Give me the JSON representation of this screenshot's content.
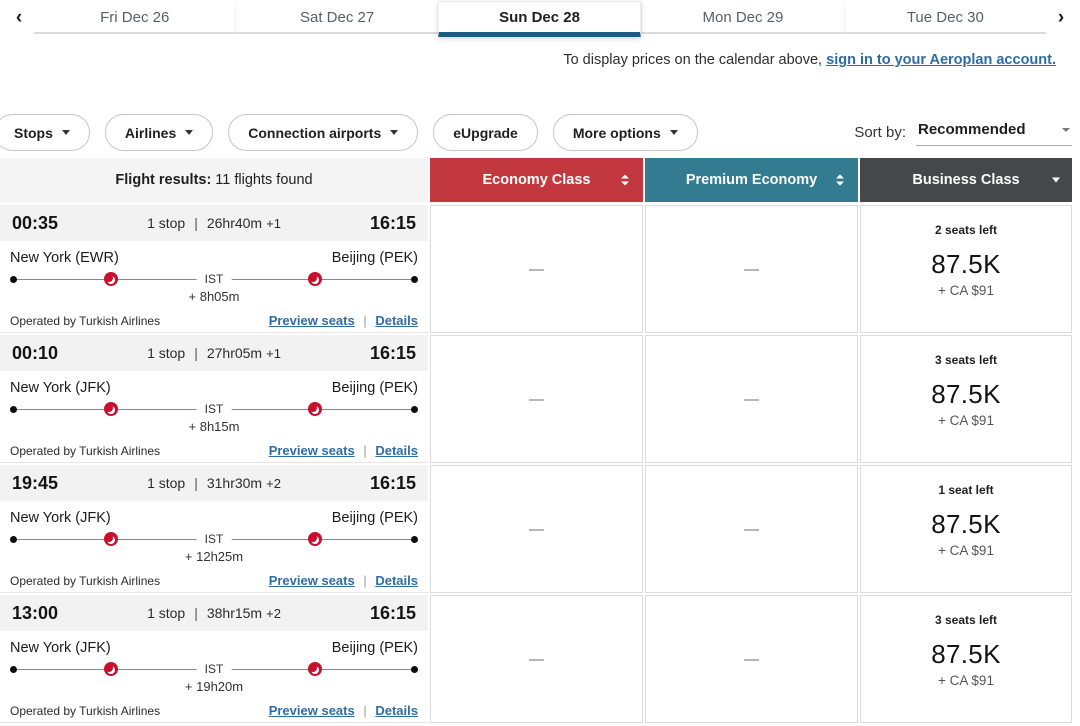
{
  "colors": {
    "economy_header": "#c2383e",
    "premium_header": "#337b91",
    "business_header": "#46474b",
    "selected_tab_underline": "#1d5c80",
    "link_blue": "#2e6da4",
    "airline_logo_red": "#c8102e"
  },
  "calendar": {
    "prev_icon": "‹",
    "next_icon": "›",
    "tabs": [
      {
        "label": "Fri Dec 26",
        "name": "tab-fri-dec-26",
        "selected": false
      },
      {
        "label": "Sat Dec 27",
        "name": "tab-sat-dec-27",
        "selected": false
      },
      {
        "label": "Sun Dec 28",
        "name": "tab-sun-dec-28",
        "selected": true
      },
      {
        "label": "Mon Dec 29",
        "name": "tab-mon-dec-29",
        "selected": false
      },
      {
        "label": "Tue Dec 30",
        "name": "tab-tue-dec-30",
        "selected": false
      }
    ],
    "signin_prefix": "To display prices on the calendar above, ",
    "signin_link": "sign in to your Aeroplan account."
  },
  "filters": {
    "pills": [
      {
        "label": "Stops",
        "name": "filter-pill-stops",
        "caret": true
      },
      {
        "label": "Airlines",
        "name": "filter-pill-airlines",
        "caret": true
      },
      {
        "label": "Connection airports",
        "name": "filter-pill-connection-airports",
        "caret": true
      },
      {
        "label": "eUpgrade",
        "name": "filter-pill-eupgrade",
        "caret": false
      },
      {
        "label": "More options",
        "name": "filter-pill-more-options",
        "caret": true
      }
    ],
    "sort_label": "Sort by:",
    "sort_value": "Recommended"
  },
  "results_header": {
    "label": "Flight results:",
    "count_text": "11 flights found",
    "columns": [
      {
        "label": "Economy Class",
        "color": "#c2383e"
      },
      {
        "label": "Premium Economy",
        "color": "#337b91"
      },
      {
        "label": "Business Class",
        "color": "#46474b"
      }
    ]
  },
  "labels": {
    "preview_seats": "Preview seats",
    "details": "Details",
    "link_separator": "|"
  },
  "flights": [
    {
      "depart_time": "00:35",
      "stops": "1 stop",
      "duration": "26hr40m",
      "day_offset": "+1",
      "arrive_time": "16:15",
      "origin": "New York (EWR)",
      "destination": "Beijing (PEK)",
      "connection": "IST",
      "layover": "+ 8h05m",
      "operated_by": "Operated by Turkish Airlines",
      "economy": "—",
      "premium": "—",
      "business": {
        "seats": "2 seats left",
        "points": "87.5K",
        "fee": "+ CA $91"
      }
    },
    {
      "depart_time": "00:10",
      "stops": "1 stop",
      "duration": "27hr05m",
      "day_offset": "+1",
      "arrive_time": "16:15",
      "origin": "New York (JFK)",
      "destination": "Beijing (PEK)",
      "connection": "IST",
      "layover": "+ 8h15m",
      "operated_by": "Operated by Turkish Airlines",
      "economy": "—",
      "premium": "—",
      "business": {
        "seats": "3 seats left",
        "points": "87.5K",
        "fee": "+ CA $91"
      }
    },
    {
      "depart_time": "19:45",
      "stops": "1 stop",
      "duration": "31hr30m",
      "day_offset": "+2",
      "arrive_time": "16:15",
      "origin": "New York (JFK)",
      "destination": "Beijing (PEK)",
      "connection": "IST",
      "layover": "+ 12h25m",
      "operated_by": "Operated by Turkish Airlines",
      "economy": "—",
      "premium": "—",
      "business": {
        "seats": "1 seat left",
        "points": "87.5K",
        "fee": "+ CA $91"
      }
    },
    {
      "depart_time": "13:00",
      "stops": "1 stop",
      "duration": "38hr15m",
      "day_offset": "+2",
      "arrive_time": "16:15",
      "origin": "New York (JFK)",
      "destination": "Beijing (PEK)",
      "connection": "IST",
      "layover": "+ 19h20m",
      "operated_by": "Operated by Turkish Airlines",
      "economy": "—",
      "premium": "—",
      "business": {
        "seats": "3 seats left",
        "points": "87.5K",
        "fee": "+ CA $91"
      }
    }
  ]
}
